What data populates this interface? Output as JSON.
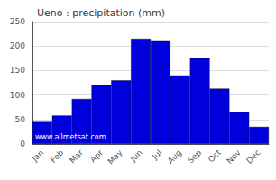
{
  "chart_data": {
    "type": "bar",
    "title": "Ueno : precipitation (mm)",
    "categories": [
      "Jan",
      "Feb",
      "Mar",
      "Apr",
      "May",
      "Jun",
      "Jul",
      "Aug",
      "Sep",
      "Oct",
      "Nov",
      "Dec"
    ],
    "values": [
      45,
      58,
      92,
      120,
      130,
      215,
      210,
      140,
      175,
      113,
      65,
      35
    ],
    "color": "#0000dd",
    "ylim": [
      0,
      250
    ],
    "yticks": [
      0,
      50,
      100,
      150,
      200,
      250
    ],
    "grid": true,
    "annotation": "www.allmetsat.com"
  }
}
